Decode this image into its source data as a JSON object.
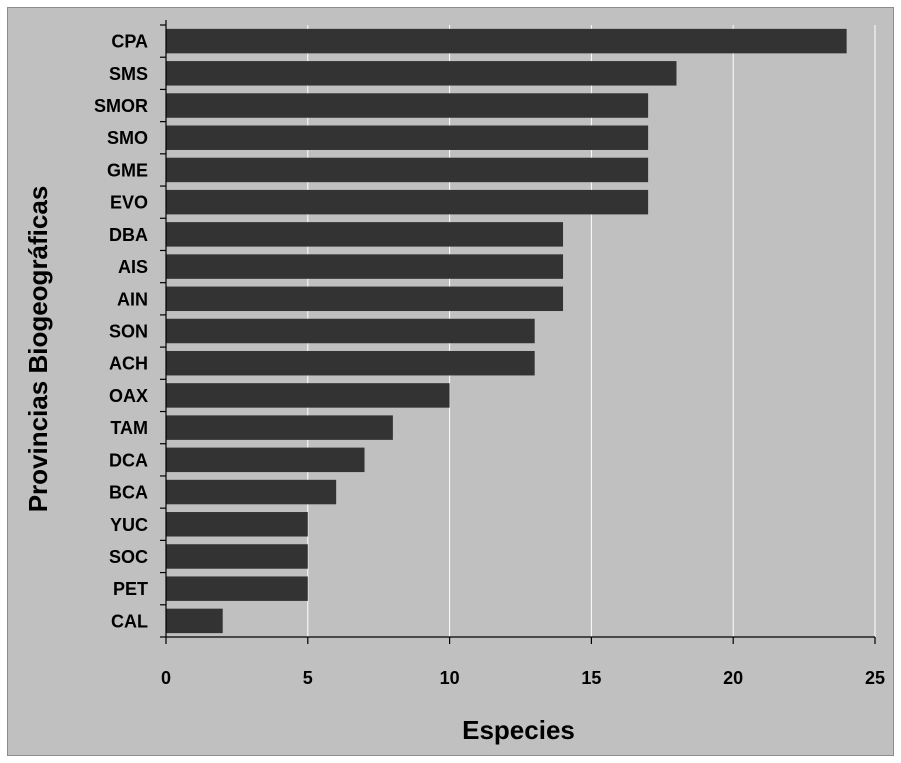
{
  "chart_data": {
    "type": "bar",
    "orientation": "horizontal",
    "title": "",
    "xlabel": "Especies",
    "ylabel": "Provincias Biogeográficas",
    "categories": [
      "CPA",
      "SMS",
      "SMOR",
      "SMO",
      "GME",
      "EVO",
      "DBA",
      "AIS",
      "AIN",
      "SON",
      "ACH",
      "OAX",
      "TAM",
      "DCA",
      "BCA",
      "YUC",
      "SOC",
      "PET",
      "CAL"
    ],
    "values": [
      24,
      18,
      17,
      17,
      17,
      17,
      14,
      14,
      14,
      13,
      13,
      10,
      8,
      7,
      6,
      5,
      5,
      5,
      2
    ],
    "xlim": [
      0,
      25
    ],
    "xticks": [
      "0",
      "5",
      "10",
      "15",
      "20",
      "25"
    ],
    "grid": "vertical",
    "legend": "none"
  },
  "colors": {
    "background": "#c0c0c0",
    "bar": "#333333",
    "gridline": "#ffffff",
    "axis": "#000000"
  }
}
